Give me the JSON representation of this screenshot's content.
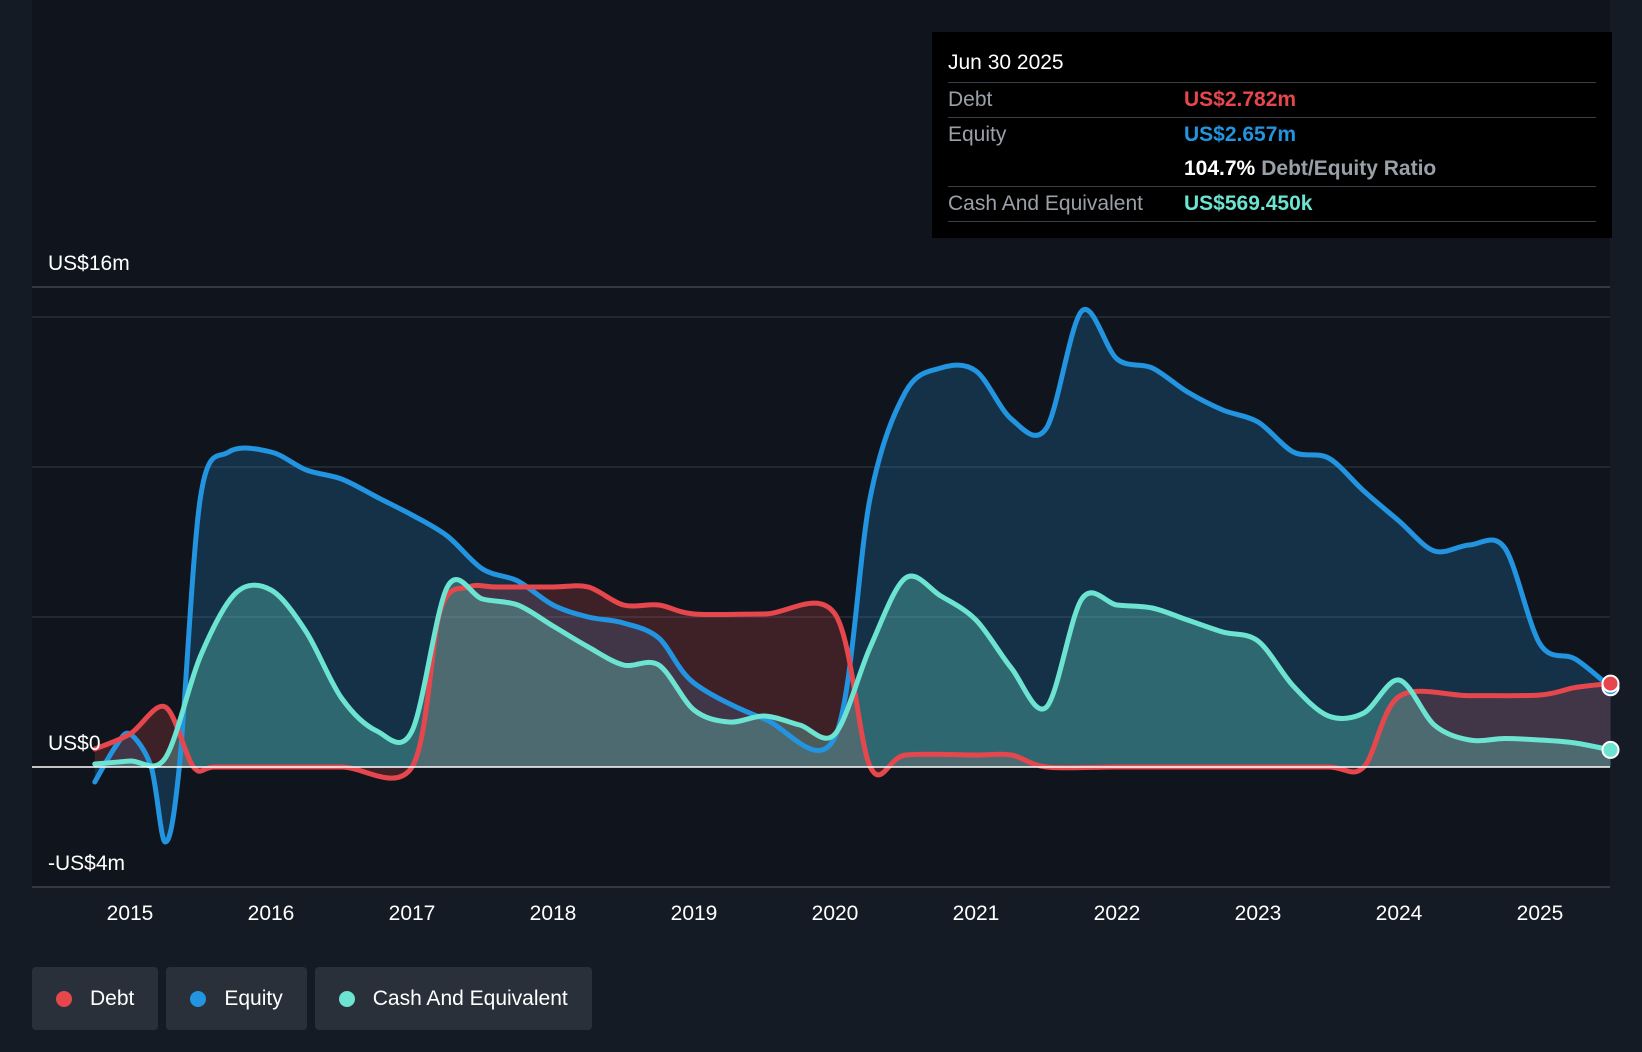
{
  "tooltip": {
    "date": "Jun 30 2025",
    "debt_label": "Debt",
    "debt_value": "US$2.782m",
    "equity_label": "Equity",
    "equity_value": "US$2.657m",
    "ratio_value": "104.7%",
    "ratio_label": "Debt/Equity Ratio",
    "cash_label": "Cash And Equivalent",
    "cash_value": "US$569.450k"
  },
  "legend": [
    {
      "label": "Debt",
      "color": "#e5474d"
    },
    {
      "label": "Equity",
      "color": "#2394df"
    },
    {
      "label": "Cash And Equivalent",
      "color": "#6de3d1"
    }
  ],
  "colors": {
    "debt": "#e5474d",
    "equity": "#2394df",
    "cash": "#6de3d1",
    "background": "#151b24"
  },
  "chart_data": {
    "type": "area",
    "y_tick_labels": [
      {
        "value": 16,
        "label": "US$16m"
      },
      {
        "value": 0,
        "label": "US$0"
      },
      {
        "value": -4,
        "label": "-US$4m"
      }
    ],
    "ylim": [
      -4,
      16
    ],
    "xlim": [
      2014.6,
      2025.5
    ],
    "x_tick_labels": [
      "2015",
      "2016",
      "2017",
      "2018",
      "2019",
      "2020",
      "2021",
      "2022",
      "2023",
      "2024",
      "2025"
    ],
    "grid": true,
    "series": [
      {
        "name": "Debt",
        "x": [
          2014.75,
          2015.0,
          2015.25,
          2015.45,
          2015.6,
          2016.0,
          2016.5,
          2017.0,
          2017.2,
          2017.4,
          2017.6,
          2018.0,
          2018.25,
          2018.5,
          2018.75,
          2019.0,
          2019.5,
          2020.0,
          2020.25,
          2020.5,
          2021.0,
          2021.25,
          2021.5,
          2022.0,
          2022.5,
          2023.0,
          2023.5,
          2023.75,
          2024.0,
          2024.5,
          2025.0,
          2025.25,
          2025.5
        ],
        "y": [
          0.6,
          1.1,
          2.0,
          0.0,
          0.0,
          0.0,
          0.0,
          0.0,
          5.2,
          6.0,
          6.0,
          6.0,
          6.0,
          5.4,
          5.4,
          5.1,
          5.1,
          5.1,
          0.0,
          0.4,
          0.4,
          0.4,
          0.0,
          0.0,
          0.0,
          0.0,
          0.0,
          0.0,
          2.35,
          2.38,
          2.4,
          2.65,
          2.78
        ]
      },
      {
        "name": "Equity",
        "x": [
          2014.75,
          2014.9,
          2015.0,
          2015.15,
          2015.25,
          2015.35,
          2015.5,
          2015.7,
          2016.0,
          2016.25,
          2016.5,
          2016.75,
          2017.0,
          2017.25,
          2017.5,
          2017.75,
          2018.0,
          2018.25,
          2018.5,
          2018.75,
          2019.0,
          2019.5,
          2020.0,
          2020.25,
          2020.5,
          2020.75,
          2021.0,
          2021.25,
          2021.5,
          2021.75,
          2022.0,
          2022.25,
          2022.5,
          2022.75,
          2023.0,
          2023.25,
          2023.5,
          2023.75,
          2024.0,
          2024.25,
          2024.5,
          2024.75,
          2025.0,
          2025.25,
          2025.5
        ],
        "y": [
          -0.5,
          0.7,
          1.1,
          0.0,
          -2.5,
          0.0,
          9.0,
          10.5,
          10.5,
          9.9,
          9.6,
          9.0,
          8.4,
          7.7,
          6.6,
          6.2,
          5.4,
          5.0,
          4.8,
          4.3,
          2.8,
          1.6,
          1.0,
          9.0,
          12.5,
          13.3,
          13.2,
          11.6,
          11.3,
          15.2,
          13.6,
          13.3,
          12.5,
          11.9,
          11.5,
          10.5,
          10.3,
          9.2,
          8.2,
          7.2,
          7.4,
          7.3,
          4.1,
          3.6,
          2.66
        ]
      },
      {
        "name": "Cash And Equivalent",
        "x": [
          2014.75,
          2015.0,
          2015.25,
          2015.5,
          2015.75,
          2016.0,
          2016.25,
          2016.5,
          2016.75,
          2017.0,
          2017.25,
          2017.5,
          2017.75,
          2018.0,
          2018.25,
          2018.5,
          2018.75,
          2019.0,
          2019.25,
          2019.5,
          2019.75,
          2020.0,
          2020.25,
          2020.5,
          2020.75,
          2021.0,
          2021.25,
          2021.5,
          2021.75,
          2022.0,
          2022.25,
          2022.5,
          2022.75,
          2023.0,
          2023.25,
          2023.5,
          2023.75,
          2024.0,
          2024.25,
          2024.5,
          2024.75,
          2025.0,
          2025.25,
          2025.5
        ],
        "y": [
          0.1,
          0.2,
          0.3,
          3.7,
          5.8,
          5.9,
          4.5,
          2.3,
          1.2,
          1.2,
          6.0,
          5.6,
          5.4,
          4.7,
          4.0,
          3.4,
          3.4,
          1.9,
          1.5,
          1.7,
          1.4,
          1.1,
          4.0,
          6.3,
          5.7,
          4.9,
          3.3,
          2.0,
          5.6,
          5.4,
          5.3,
          4.9,
          4.5,
          4.2,
          2.7,
          1.7,
          1.8,
          2.9,
          1.4,
          0.9,
          0.95,
          0.9,
          0.8,
          0.57
        ]
      }
    ]
  }
}
